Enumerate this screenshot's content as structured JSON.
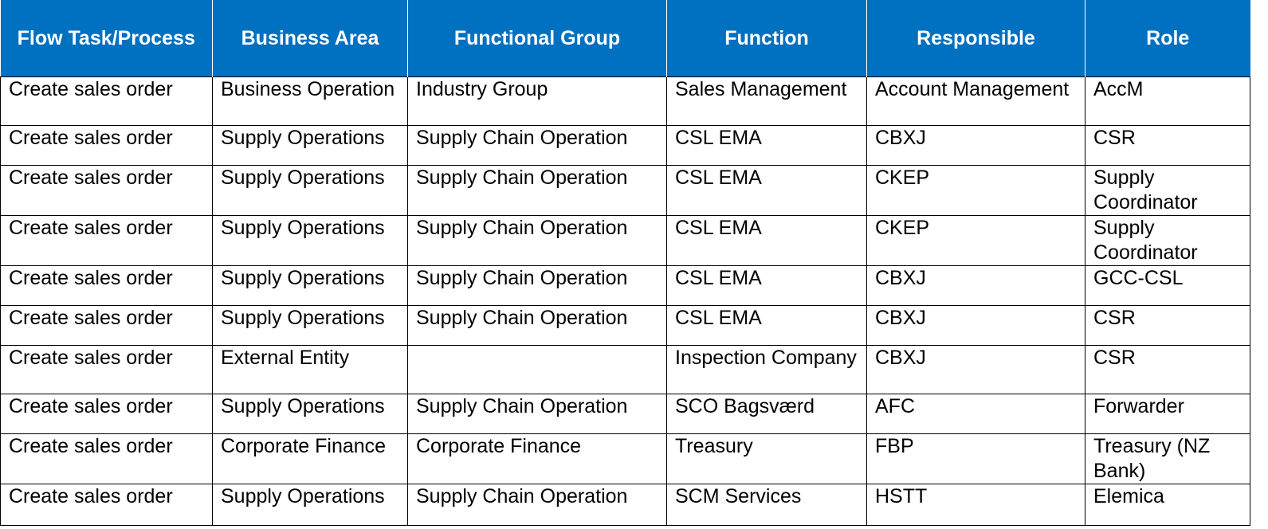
{
  "table": {
    "headers": [
      "Flow Task/Process",
      "Business Area",
      "Functional Group",
      "Function",
      "Responsible",
      "Role"
    ],
    "rows": [
      [
        "Create sales order",
        "Business Operation",
        "Industry Group",
        "Sales Management",
        "Account Management",
        "AccM"
      ],
      [
        "Create sales order",
        "Supply Operations",
        "Supply Chain Operation",
        "CSL EMA",
        "CBXJ",
        "CSR"
      ],
      [
        "Create sales order",
        "Supply Operations",
        "Supply Chain Operation",
        "CSL EMA",
        "CKEP",
        "Supply Coordinator"
      ],
      [
        "Create sales order",
        "Supply Operations",
        "Supply Chain Operation",
        "CSL EMA",
        "CKEP",
        "Supply Coordinator"
      ],
      [
        "Create sales order",
        "Supply Operations",
        "Supply Chain Operation",
        "CSL EMA",
        "CBXJ",
        "GCC-CSL"
      ],
      [
        "Create sales order",
        "Supply Operations",
        "Supply Chain Operation",
        "CSL EMA",
        "CBXJ",
        "CSR"
      ],
      [
        "Create sales order",
        "External Entity",
        "",
        "Inspection Company",
        "CBXJ",
        "CSR"
      ],
      [
        "Create sales order",
        "Supply Operations",
        "Supply Chain Operation",
        "SCO Bagsværd",
        "AFC",
        "Forwarder"
      ],
      [
        "Create sales order",
        "Corporate Finance",
        "Corporate Finance",
        "Treasury",
        "FBP",
        "Treasury (NZ Bank)"
      ],
      [
        "Create sales order",
        "Supply Operations",
        "Supply Chain Operation",
        "SCM Services",
        "HSTT",
        "Elemica"
      ]
    ]
  },
  "colors": {
    "header_bg": "#0070c0",
    "header_text": "#ffffff",
    "border": "#000000"
  }
}
